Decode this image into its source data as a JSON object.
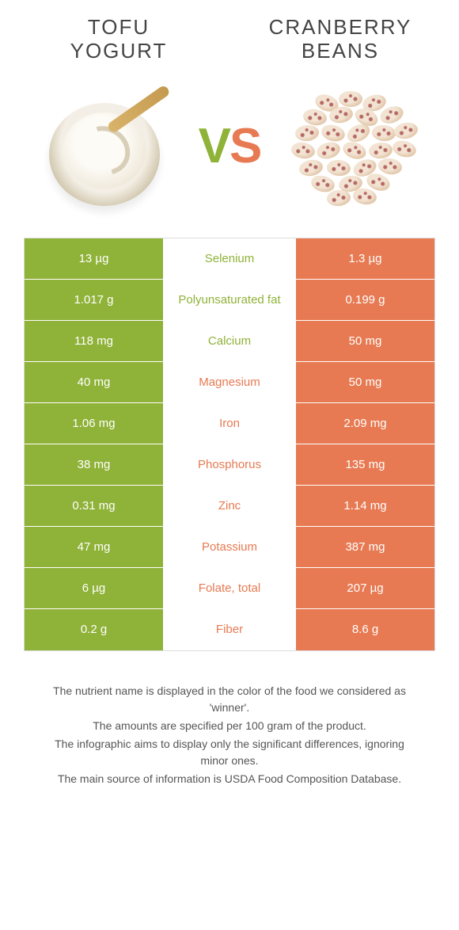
{
  "header": {
    "left_title": "TOFU\nYOGURT",
    "right_title": "CRANBERRY\nBEANS"
  },
  "vs": {
    "v": "V",
    "s": "S"
  },
  "colors": {
    "left": "#8fb238",
    "right": "#e77a52",
    "mid_bg": "#ffffff",
    "row_border": "#ffffff"
  },
  "table": {
    "rows": [
      {
        "left": "13 µg",
        "label": "Selenium",
        "right": "1.3 µg",
        "winner": "left"
      },
      {
        "left": "1.017 g",
        "label": "Polyunsaturated fat",
        "right": "0.199 g",
        "winner": "left"
      },
      {
        "left": "118 mg",
        "label": "Calcium",
        "right": "50 mg",
        "winner": "left"
      },
      {
        "left": "40 mg",
        "label": "Magnesium",
        "right": "50 mg",
        "winner": "right"
      },
      {
        "left": "1.06 mg",
        "label": "Iron",
        "right": "2.09 mg",
        "winner": "right"
      },
      {
        "left": "38 mg",
        "label": "Phosphorus",
        "right": "135 mg",
        "winner": "right"
      },
      {
        "left": "0.31 mg",
        "label": "Zinc",
        "right": "1.14 mg",
        "winner": "right"
      },
      {
        "left": "47 mg",
        "label": "Potassium",
        "right": "387 mg",
        "winner": "right"
      },
      {
        "left": "6 µg",
        "label": "Folate, total",
        "right": "207 µg",
        "winner": "right"
      },
      {
        "left": "0.2 g",
        "label": "Fiber",
        "right": "8.6 g",
        "winner": "right"
      }
    ]
  },
  "footer": {
    "l1": "The nutrient name is displayed in the color of the food we considered as 'winner'.",
    "l2": "The amounts are specified per 100 gram of the product.",
    "l3": "The infographic aims to display only the significant differences, ignoring minor ones.",
    "l4": "The main source of information is USDA Food Composition Database."
  }
}
